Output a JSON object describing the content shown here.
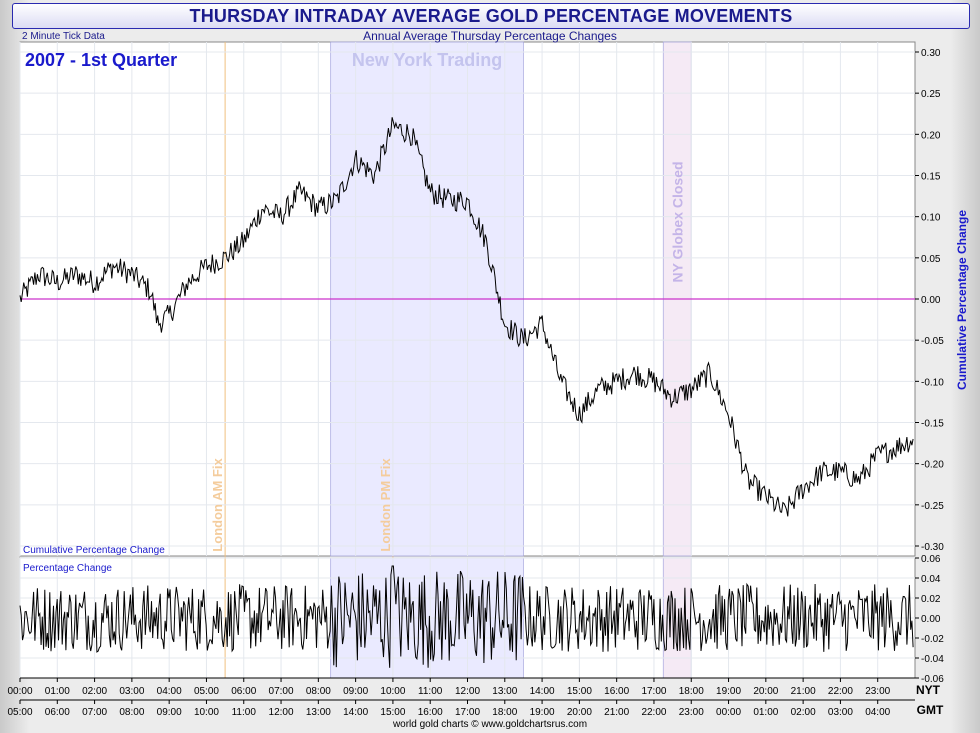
{
  "title": "THURSDAY INTRADAY AVERAGE GOLD PERCENTAGE MOVEMENTS",
  "subtitle": "Annual Average Thursday Percentage Changes",
  "data_note": "2 Minute Tick Data",
  "period_label": "2007 - 1st Quarter",
  "footer": "world gold charts © www.goldchartsrus.com",
  "colors": {
    "title": "#1a1a8c",
    "line": "#000000",
    "zero_line": "#cc33cc",
    "london_fix": "#f0c080",
    "ny_band": "#e8e8ff",
    "ny_edge": "#a8a8e0",
    "globex_band": "#f4e8f4"
  },
  "chart_data": [
    {
      "type": "line",
      "title": "Cumulative Percentage Change",
      "ylabel": "Cumulative Percentage Change",
      "ylim": [
        -0.3,
        0.3
      ],
      "yticks": [
        "0.30",
        "0.25",
        "0.20",
        "0.15",
        "0.10",
        "0.05",
        "0.00",
        "-0.05",
        "-0.10",
        "-0.15",
        "-0.20",
        "-0.25",
        "-0.30"
      ],
      "x_nyt": [
        "00:00",
        "01:00",
        "02:00",
        "03:00",
        "04:00",
        "05:00",
        "06:00",
        "07:00",
        "08:00",
        "09:00",
        "10:00",
        "11:00",
        "12:00",
        "13:00",
        "14:00",
        "15:00",
        "16:00",
        "17:00",
        "18:00",
        "19:00",
        "20:00",
        "21:00",
        "22:00",
        "23:00"
      ],
      "x_gmt": [
        "05:00",
        "06:00",
        "07:00",
        "08:00",
        "09:00",
        "10:00",
        "11:00",
        "12:00",
        "13:00",
        "14:00",
        "15:00",
        "16:00",
        "17:00",
        "18:00",
        "19:00",
        "20:00",
        "21:00",
        "22:00",
        "23:00",
        "00:00",
        "01:00",
        "02:00",
        "03:00",
        "04:00"
      ],
      "x_unit_labels": [
        "NYT",
        "GMT"
      ],
      "hours": [
        0,
        0.5,
        1,
        1.5,
        2,
        2.5,
        3,
        3.5,
        3.7,
        4,
        4.5,
        5,
        5.5,
        6,
        6.5,
        7,
        7.5,
        8,
        8.5,
        9,
        9.5,
        10,
        10.5,
        11,
        11.5,
        12,
        12.5,
        13,
        13.5,
        14,
        14.5,
        15,
        15.5,
        16,
        16.5,
        17,
        17.5,
        18,
        18.5,
        19,
        19.5,
        20,
        20.5,
        21,
        21.5,
        22,
        22.5,
        23,
        23.5,
        23.95
      ],
      "values": [
        0.0,
        0.03,
        0.02,
        0.03,
        0.02,
        0.04,
        0.03,
        0.01,
        -0.03,
        -0.02,
        0.02,
        0.04,
        0.05,
        0.07,
        0.11,
        0.1,
        0.13,
        0.11,
        0.12,
        0.17,
        0.15,
        0.21,
        0.2,
        0.13,
        0.12,
        0.12,
        0.07,
        -0.03,
        -0.05,
        -0.03,
        -0.1,
        -0.14,
        -0.11,
        -0.1,
        -0.09,
        -0.1,
        -0.12,
        -0.11,
        -0.09,
        -0.14,
        -0.22,
        -0.24,
        -0.26,
        -0.23,
        -0.21,
        -0.21,
        -0.22,
        -0.19,
        -0.18,
        -0.17
      ],
      "zero_line": 0.0,
      "annotations": [
        {
          "label": "London AM Fix",
          "hour": 5.5
        },
        {
          "label": "London PM Fix",
          "hour": 10.0
        },
        {
          "label": "New York Trading",
          "from": 8.33,
          "to": 13.5
        },
        {
          "label": "NY Globex Closed",
          "from": 17.25,
          "to": 18.0
        }
      ]
    },
    {
      "type": "line",
      "title": "Percentage Change",
      "ylim": [
        -0.06,
        0.06
      ],
      "yticks": [
        "0.06",
        "0.04",
        "0.02",
        "0.00",
        "-0.02",
        "-0.04",
        "-0.06"
      ]
    }
  ]
}
